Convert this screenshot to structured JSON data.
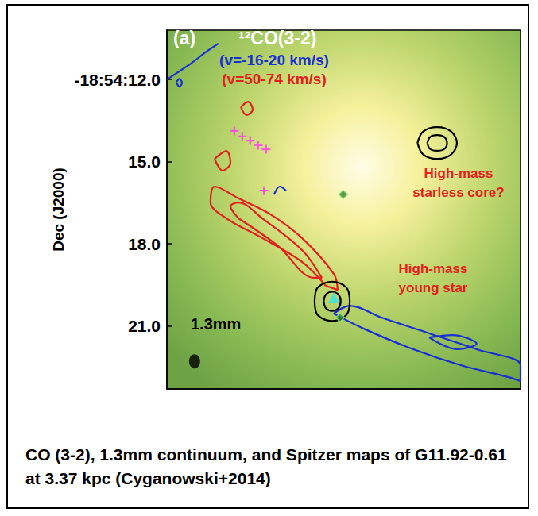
{
  "chart_data": {
    "type": "contour_map",
    "panel": "(a)",
    "title": "¹²CO(3-2)",
    "ylabel": "Dec (J2000)",
    "xlim": [
      0,
      12.9
    ],
    "ylim": [
      10.2,
      23.3
    ],
    "yticks": [
      {
        "value": 12,
        "label": "-18:54:12.0"
      },
      {
        "value": 15,
        "label": "15.0"
      },
      {
        "value": 18,
        "label": "18.0"
      },
      {
        "value": 21,
        "label": "21.0"
      }
    ],
    "tick_labels": "y",
    "grid": false,
    "series": [
      {
        "name": "(v=-16-20 km/s)",
        "type": "line",
        "color": "#1a2ed6",
        "contours": [
          [
            [
              6.09,
              20.55
            ],
            [
              7.25,
              21.13
            ],
            [
              8.99,
              21.85
            ],
            [
              10.72,
              22.43
            ],
            [
              12.46,
              22.87
            ],
            [
              12.9,
              23.01
            ],
            [
              12.9,
              22.43
            ],
            [
              11.3,
              21.85
            ],
            [
              9.57,
              21.27
            ],
            [
              7.83,
              20.69
            ],
            [
              6.67,
              20.26
            ],
            [
              6.09,
              20.55
            ]
          ],
          [
            [
              9.57,
              21.42
            ],
            [
              10.43,
              21.33
            ],
            [
              11.3,
              21.65
            ],
            [
              10.58,
              21.85
            ],
            [
              9.57,
              21.42
            ]
          ],
          [
            [
              0,
              12.0
            ],
            [
              0.87,
              11.42
            ],
            [
              1.45,
              10.98
            ],
            [
              1.88,
              10.69
            ]
          ],
          [
            [
              0.35,
              12.1
            ],
            [
              0.45,
              11.98
            ],
            [
              0.55,
              12.12
            ],
            [
              0.45,
              12.26
            ],
            [
              0.35,
              12.1
            ]
          ],
          [
            [
              3.91,
              16.2
            ],
            [
              4.12,
              15.91
            ],
            [
              4.35,
              16.06
            ]
          ]
        ]
      },
      {
        "name": "(v=50-74 km/s)",
        "type": "line",
        "color": "#e3201b",
        "contours": [
          [
            [
              5.8,
              19.53
            ],
            [
              4.93,
              18.66
            ],
            [
              3.48,
              17.79
            ],
            [
              2.17,
              17.07
            ],
            [
              1.59,
              16.49
            ],
            [
              1.74,
              15.91
            ],
            [
              2.61,
              16.34
            ],
            [
              3.77,
              16.92
            ],
            [
              4.93,
              17.79
            ],
            [
              6.09,
              19.1
            ],
            [
              6.23,
              19.68
            ],
            [
              5.8,
              19.53
            ]
          ],
          [
            [
              2.61,
              17.07
            ],
            [
              2.32,
              16.63
            ],
            [
              2.61,
              16.49
            ],
            [
              3.48,
              17.07
            ],
            [
              4.93,
              18.23
            ],
            [
              5.65,
              19.24
            ],
            [
              5.36,
              19.24
            ],
            [
              4.06,
              18.08
            ],
            [
              2.61,
              17.07
            ]
          ],
          [
            [
              1.74,
              14.9
            ],
            [
              2.17,
              14.61
            ],
            [
              2.32,
              15.04
            ],
            [
              2.03,
              15.33
            ],
            [
              1.74,
              14.9
            ]
          ],
          [
            [
              2.7,
              13.01
            ],
            [
              2.96,
              12.81
            ],
            [
              3.13,
              13.1
            ],
            [
              2.9,
              13.3
            ],
            [
              2.7,
              13.01
            ]
          ]
        ]
      },
      {
        "name": "1.3mm",
        "type": "line",
        "color": "#000000",
        "contours": [
          [
            [
              5.39,
              20.1
            ],
            [
              5.5,
              19.6
            ],
            [
              6.03,
              19.38
            ],
            [
              6.55,
              19.6
            ],
            [
              6.67,
              20.1
            ],
            [
              6.55,
              20.6
            ],
            [
              6.03,
              20.82
            ],
            [
              5.5,
              20.6
            ],
            [
              5.39,
              20.1
            ]
          ],
          [
            [
              5.72,
              20.1
            ],
            [
              5.8,
              19.85
            ],
            [
              6.03,
              19.75
            ],
            [
              6.26,
              19.85
            ],
            [
              6.34,
              20.1
            ],
            [
              6.26,
              20.35
            ],
            [
              6.03,
              20.45
            ],
            [
              5.8,
              20.35
            ],
            [
              5.72,
              20.1
            ]
          ],
          [
            [
              9.14,
              14.32
            ],
            [
              9.35,
              13.9
            ],
            [
              9.86,
              13.74
            ],
            [
              10.37,
              13.9
            ],
            [
              10.58,
              14.32
            ],
            [
              10.37,
              14.74
            ],
            [
              9.86,
              14.9
            ],
            [
              9.35,
              14.74
            ],
            [
              9.14,
              14.32
            ]
          ],
          [
            [
              9.5,
              14.32
            ],
            [
              9.6,
              14.1
            ],
            [
              9.86,
              14.03
            ],
            [
              10.12,
              14.1
            ],
            [
              10.22,
              14.32
            ],
            [
              10.12,
              14.54
            ],
            [
              9.86,
              14.6
            ],
            [
              9.6,
              14.54
            ],
            [
              9.5,
              14.32
            ]
          ]
        ]
      },
      {
        "type": "scatter",
        "marker": "cross",
        "color": "#ff3cf0",
        "points": [
          [
            2.46,
            13.88
          ],
          [
            2.75,
            14.08
          ],
          [
            3.04,
            14.23
          ],
          [
            3.33,
            14.4
          ],
          [
            3.62,
            14.55
          ],
          [
            3.54,
            16.06
          ]
        ]
      },
      {
        "type": "scatter",
        "marker": "diamond",
        "color": "#2f8a2a",
        "points": [
          [
            6.43,
            16.2
          ],
          [
            6.32,
            20.69
          ]
        ]
      },
      {
        "type": "scatter",
        "marker": "triangle",
        "color": "#35e3e8",
        "points": [
          [
            6.09,
            19.97
          ]
        ]
      },
      {
        "type": "scatter",
        "marker": "ellipse",
        "color": "#000000",
        "points": [
          [
            1.01,
            22.29
          ]
        ]
      }
    ],
    "annotations": [
      {
        "text": "High-mass\nstarless core?",
        "color": "#e3201b"
      },
      {
        "text": "High-mass\nyoung star",
        "color": "#e3201b"
      }
    ],
    "caption": "CO (3-2), 1.3mm continuum, and Spitzer maps of G11.92-0.61 at 3.37 kpc (Cyganowski+2014)"
  }
}
